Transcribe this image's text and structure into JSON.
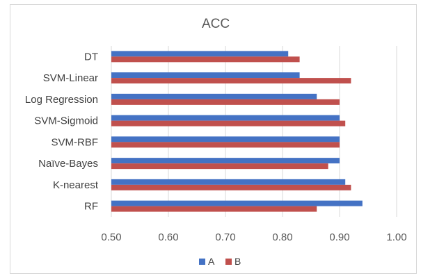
{
  "chart_data": {
    "type": "bar",
    "orientation": "horizontal",
    "title": "ACC",
    "xlabel": "",
    "ylabel": "",
    "categories": [
      "DT",
      "SVM-Linear",
      "Log Regression",
      "SVM-Sigmoid",
      "SVM-RBF",
      "Naïve-Bayes",
      "K-nearest",
      "RF"
    ],
    "series": [
      {
        "name": "A",
        "color": "#4472c4",
        "values": [
          0.81,
          0.83,
          0.86,
          0.9,
          0.9,
          0.9,
          0.91,
          0.94
        ]
      },
      {
        "name": "B",
        "color": "#c0504d",
        "values": [
          0.83,
          0.92,
          0.9,
          0.91,
          0.9,
          0.88,
          0.92,
          0.86
        ]
      }
    ],
    "xlim": [
      0.5,
      1.0
    ],
    "xticks": [
      "0.50",
      "0.60",
      "0.70",
      "0.80",
      "0.90",
      "1.00"
    ],
    "grid": "vertical",
    "legend": "bottom"
  }
}
